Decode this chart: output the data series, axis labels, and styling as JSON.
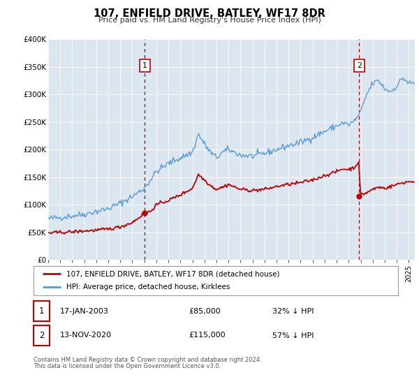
{
  "title": "107, ENFIELD DRIVE, BATLEY, WF17 8DR",
  "subtitle": "Price paid vs. HM Land Registry's House Price Index (HPI)",
  "legend_line1": "107, ENFIELD DRIVE, BATLEY, WF17 8DR (detached house)",
  "legend_line2": "HPI: Average price, detached house, Kirklees",
  "transaction1_date": "17-JAN-2003",
  "transaction1_price": 85000,
  "transaction1_label": "32% ↓ HPI",
  "transaction2_date": "13-NOV-2020",
  "transaction2_price": 115000,
  "transaction2_label": "57% ↓ HPI",
  "footnote1": "Contains HM Land Registry data © Crown copyright and database right 2024.",
  "footnote2": "This data is licensed under the Open Government Licence v3.0.",
  "hpi_color": "#5b9bd5",
  "price_color": "#c00000",
  "plot_bg_color": "#dce6f1",
  "ylim": [
    0,
    400000
  ],
  "yticks": [
    0,
    50000,
    100000,
    150000,
    200000,
    250000,
    300000,
    350000,
    400000
  ],
  "ytick_labels": [
    "£0",
    "£50K",
    "£100K",
    "£150K",
    "£200K",
    "£250K",
    "£300K",
    "£350K",
    "£400K"
  ],
  "transaction1_year": 2003.04,
  "transaction1_price_y": 85000,
  "transaction2_year": 2020.87,
  "transaction2_price_y": 115000,
  "xmin": 1995.0,
  "xmax": 2025.5
}
